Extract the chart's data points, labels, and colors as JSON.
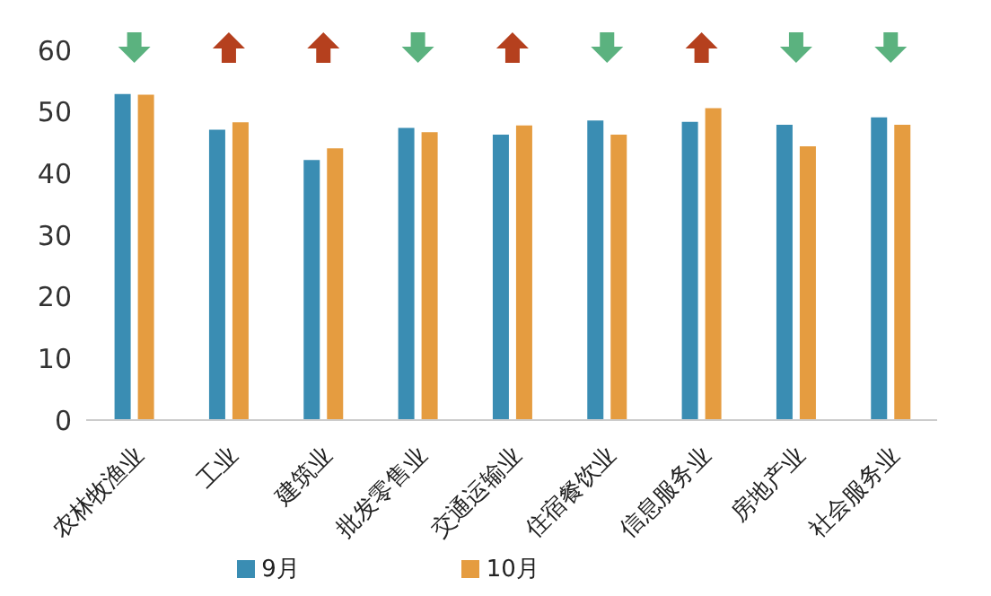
{
  "chart_data": {
    "type": "bar",
    "categories": [
      "农林牧渔业",
      "工业",
      "建筑业",
      "批发零售业",
      "交通运输业",
      "住宿餐饮业",
      "信息服务业",
      "房地产业",
      "社会服务业"
    ],
    "series": [
      {
        "name": "9月",
        "color": "#3a8db3",
        "values": [
          52.9,
          47.1,
          42.2,
          47.4,
          46.3,
          48.6,
          48.4,
          47.9,
          49.1
        ]
      },
      {
        "name": "10月",
        "color": "#e59c40",
        "values": [
          52.8,
          48.3,
          44.1,
          46.7,
          47.8,
          46.3,
          50.6,
          44.4,
          47.9
        ]
      }
    ],
    "ylim": [
      0,
      60
    ],
    "yticks": [
      0,
      10,
      20,
      30,
      40,
      50,
      60
    ],
    "grid": false,
    "legend": "bottom"
  }
}
